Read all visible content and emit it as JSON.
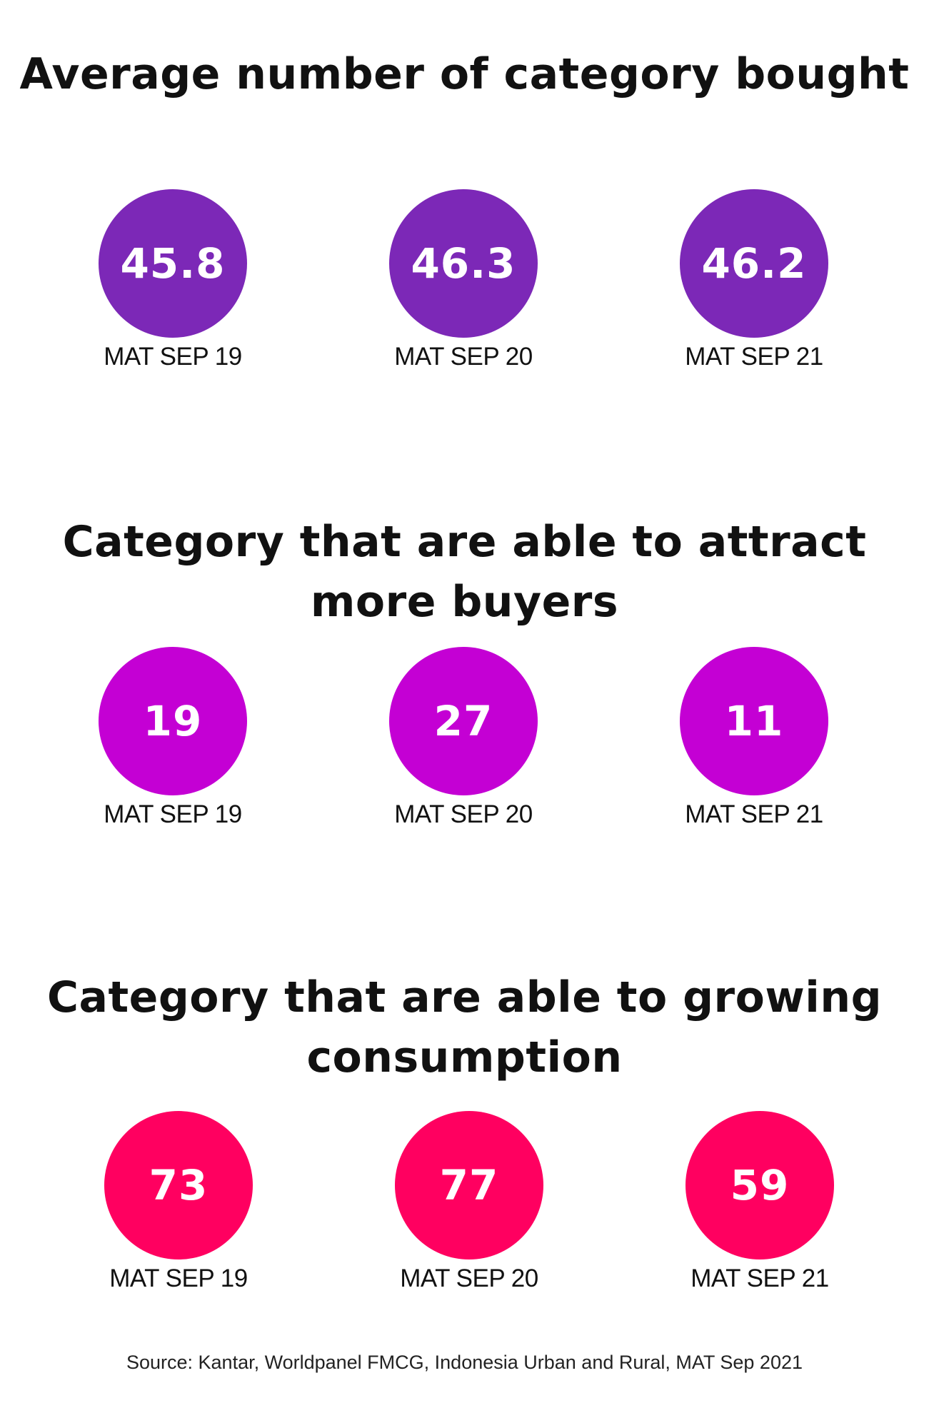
{
  "colors": {
    "purple": "#7C28B7",
    "magenta": "#C400D4",
    "pink": "#FF0060",
    "text": "#111111"
  },
  "chart_data": [
    {
      "type": "table",
      "title": "Average number of category bought",
      "categories": [
        "MAT SEP 19",
        "MAT SEP 20",
        "MAT SEP 21"
      ],
      "values": [
        "45.8",
        "46.3",
        "46.2"
      ],
      "color": "#7C28B7"
    },
    {
      "type": "table",
      "title": "Category that are able to attract more buyers",
      "categories": [
        "MAT SEP 19",
        "MAT SEP 20",
        "MAT SEP 21"
      ],
      "values": [
        "19",
        "27",
        "11"
      ],
      "color": "#C400D4"
    },
    {
      "type": "table",
      "title": "Category that are able to growing consumption",
      "categories": [
        "MAT SEP 19",
        "MAT SEP 20",
        "MAT SEP 21"
      ],
      "values": [
        "73",
        "77",
        "59"
      ],
      "color": "#FF0060"
    }
  ],
  "source": "Source: Kantar, Worldpanel FMCG, Indonesia Urban and Rural, MAT Sep 2021"
}
